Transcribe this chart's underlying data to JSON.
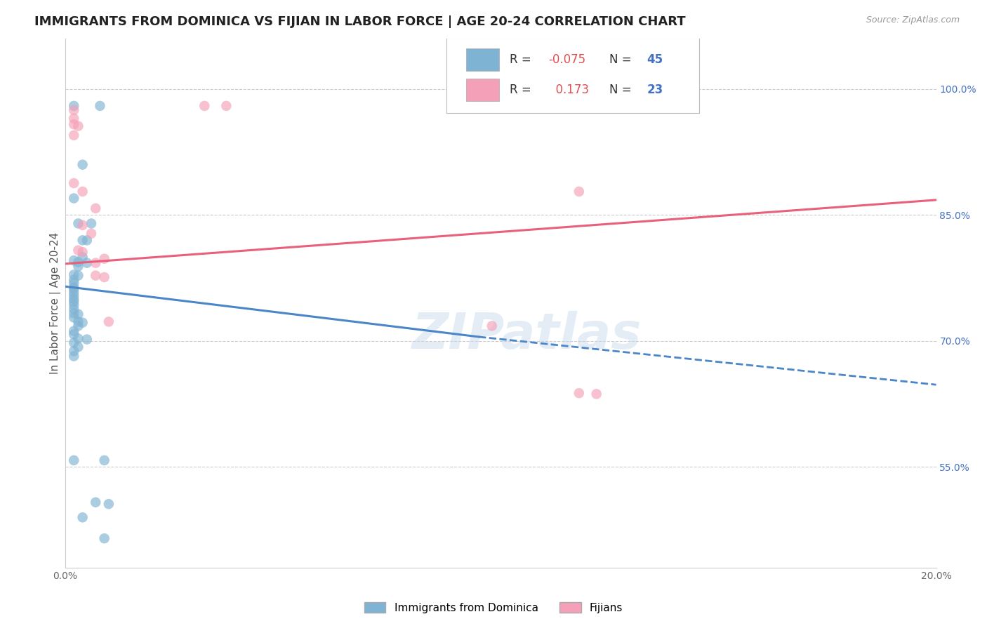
{
  "title": "IMMIGRANTS FROM DOMINICA VS FIJIAN IN LABOR FORCE | AGE 20-24 CORRELATION CHART",
  "source": "Source: ZipAtlas.com",
  "ylabel": "In Labor Force | Age 20-24",
  "watermark": "ZIPatlas",
  "blue_label": "Immigrants from Dominica",
  "pink_label": "Fijians",
  "blue_R": -0.075,
  "blue_N": 45,
  "pink_R": 0.173,
  "pink_N": 23,
  "xlim": [
    0.0,
    0.2
  ],
  "ylim": [
    0.43,
    1.06
  ],
  "right_yticks": [
    0.55,
    0.7,
    0.85,
    1.0
  ],
  "right_yticklabels": [
    "55.0%",
    "70.0%",
    "85.0%",
    "100.0%"
  ],
  "xticks": [
    0.0,
    0.05,
    0.1,
    0.15,
    0.2
  ],
  "xticklabels": [
    "0.0%",
    "",
    "",
    "",
    "20.0%"
  ],
  "blue_color": "#7fb3d3",
  "pink_color": "#f4a0b8",
  "blue_line_color": "#4a86c8",
  "pink_line_color": "#e8607a",
  "blue_line_solid": [
    [
      0.0,
      0.765
    ],
    [
      0.095,
      0.705
    ]
  ],
  "blue_line_dash": [
    [
      0.095,
      0.705
    ],
    [
      0.2,
      0.648
    ]
  ],
  "pink_line": [
    [
      0.0,
      0.792
    ],
    [
      0.2,
      0.868
    ]
  ],
  "blue_dots": [
    [
      0.002,
      0.98
    ],
    [
      0.008,
      0.98
    ],
    [
      0.004,
      0.91
    ],
    [
      0.002,
      0.87
    ],
    [
      0.003,
      0.84
    ],
    [
      0.006,
      0.84
    ],
    [
      0.004,
      0.82
    ],
    [
      0.005,
      0.82
    ],
    [
      0.004,
      0.8
    ],
    [
      0.002,
      0.796
    ],
    [
      0.003,
      0.794
    ],
    [
      0.005,
      0.793
    ],
    [
      0.003,
      0.789
    ],
    [
      0.002,
      0.779
    ],
    [
      0.003,
      0.778
    ],
    [
      0.002,
      0.773
    ],
    [
      0.002,
      0.769
    ],
    [
      0.002,
      0.764
    ],
    [
      0.002,
      0.762
    ],
    [
      0.002,
      0.758
    ],
    [
      0.002,
      0.754
    ],
    [
      0.002,
      0.75
    ],
    [
      0.002,
      0.747
    ],
    [
      0.002,
      0.743
    ],
    [
      0.002,
      0.738
    ],
    [
      0.002,
      0.733
    ],
    [
      0.003,
      0.732
    ],
    [
      0.002,
      0.728
    ],
    [
      0.003,
      0.723
    ],
    [
      0.004,
      0.722
    ],
    [
      0.003,
      0.718
    ],
    [
      0.002,
      0.712
    ],
    [
      0.002,
      0.708
    ],
    [
      0.003,
      0.703
    ],
    [
      0.005,
      0.702
    ],
    [
      0.002,
      0.698
    ],
    [
      0.003,
      0.693
    ],
    [
      0.002,
      0.688
    ],
    [
      0.002,
      0.682
    ],
    [
      0.002,
      0.558
    ],
    [
      0.009,
      0.558
    ],
    [
      0.007,
      0.508
    ],
    [
      0.01,
      0.506
    ],
    [
      0.004,
      0.49
    ],
    [
      0.009,
      0.465
    ]
  ],
  "pink_dots": [
    [
      0.032,
      0.98
    ],
    [
      0.037,
      0.98
    ],
    [
      0.002,
      0.975
    ],
    [
      0.002,
      0.965
    ],
    [
      0.002,
      0.958
    ],
    [
      0.003,
      0.956
    ],
    [
      0.002,
      0.945
    ],
    [
      0.002,
      0.888
    ],
    [
      0.004,
      0.878
    ],
    [
      0.007,
      0.858
    ],
    [
      0.004,
      0.838
    ],
    [
      0.006,
      0.828
    ],
    [
      0.003,
      0.808
    ],
    [
      0.004,
      0.806
    ],
    [
      0.009,
      0.798
    ],
    [
      0.007,
      0.793
    ],
    [
      0.007,
      0.778
    ],
    [
      0.009,
      0.776
    ],
    [
      0.01,
      0.723
    ],
    [
      0.118,
      0.878
    ],
    [
      0.098,
      0.718
    ],
    [
      0.118,
      0.638
    ],
    [
      0.122,
      0.637
    ]
  ],
  "grid_color": "#cccccc",
  "background_color": "#ffffff",
  "title_fontsize": 13,
  "axis_label_fontsize": 11,
  "tick_fontsize": 10,
  "legend_fontsize": 12
}
